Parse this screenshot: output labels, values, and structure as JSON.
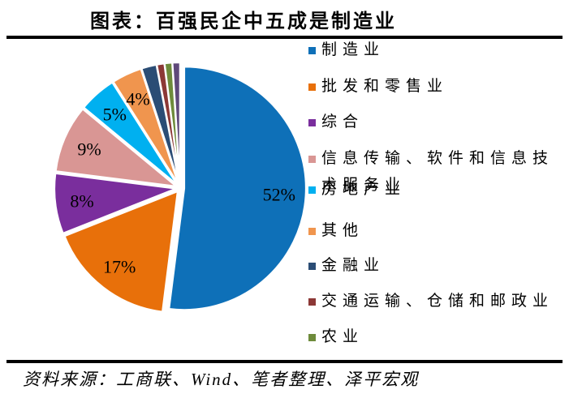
{
  "title": "图表：百强民企中五成是制造业",
  "source": "资料来源：工商联、Wind、笔者整理、泽平宏观",
  "colors": {
    "manufacturing_blue": "#0E70B8",
    "wholesale_orange": "#E8700A",
    "composite_purple": "#7A2E9D",
    "it_pink": "#D99694",
    "realestate_cyan": "#00B0F0",
    "other_lightorange": "#F0954E",
    "finance_navy": "#2B4D75",
    "transport_darkred": "#8C3836",
    "agriculture_olive": "#6E8B3B",
    "tiny_darkpurple": "#5F497A",
    "rule_black": "#000000"
  },
  "chart_data": {
    "type": "pie",
    "title": "图表：百强民企中五成是制造业",
    "direction": "clockwise",
    "start_angle_deg": 0,
    "legend_position": "right",
    "slices": [
      {
        "label": "制造业",
        "value": 52,
        "color": "#0E70B8",
        "show_label": true
      },
      {
        "label": "批发和零售业",
        "value": 17,
        "color": "#E8700A",
        "show_label": true
      },
      {
        "label": "综合",
        "value": 8,
        "color": "#7A2E9D",
        "show_label": true
      },
      {
        "label": "信息传输、软件和信息技术服务业",
        "value": 9,
        "color": "#D99694",
        "show_label": true
      },
      {
        "label": "房地产业",
        "value": 5,
        "color": "#00B0F0",
        "show_label": true
      },
      {
        "label": "其他",
        "value": 4,
        "color": "#F0954E",
        "show_label": true
      },
      {
        "label": "金融业",
        "value": 2,
        "color": "#2B4D75",
        "show_label": false
      },
      {
        "label": "交通运输、仓储和邮政业",
        "value": 1,
        "color": "#8C3836",
        "show_label": false
      },
      {
        "label": "农业",
        "value": 1,
        "color": "#6E8B3B",
        "show_label": false
      },
      {
        "label": "",
        "value": 1,
        "color": "#5F497A",
        "show_label": false
      }
    ]
  },
  "legend": {
    "items": [
      {
        "lines": [
          "制造业"
        ],
        "color": "#0E70B8"
      },
      {
        "lines": [
          "批发和零售业"
        ],
        "color": "#E8700A"
      },
      {
        "lines": [
          "综合"
        ],
        "color": "#7A2E9D"
      },
      {
        "lines": [
          "信息传输、软件和信息技",
          "术服务业"
        ],
        "color": "#D99694"
      },
      {
        "lines": [
          "房地产业"
        ],
        "color": "#00B0F0"
      },
      {
        "lines": [
          "其他"
        ],
        "color": "#F0954E"
      },
      {
        "lines": [
          "金融业"
        ],
        "color": "#2B4D75"
      },
      {
        "lines": [
          "交通运输、仓储和邮政业"
        ],
        "color": "#8C3836"
      },
      {
        "lines": [
          "农业"
        ],
        "color": "#6E8B3B"
      }
    ]
  }
}
